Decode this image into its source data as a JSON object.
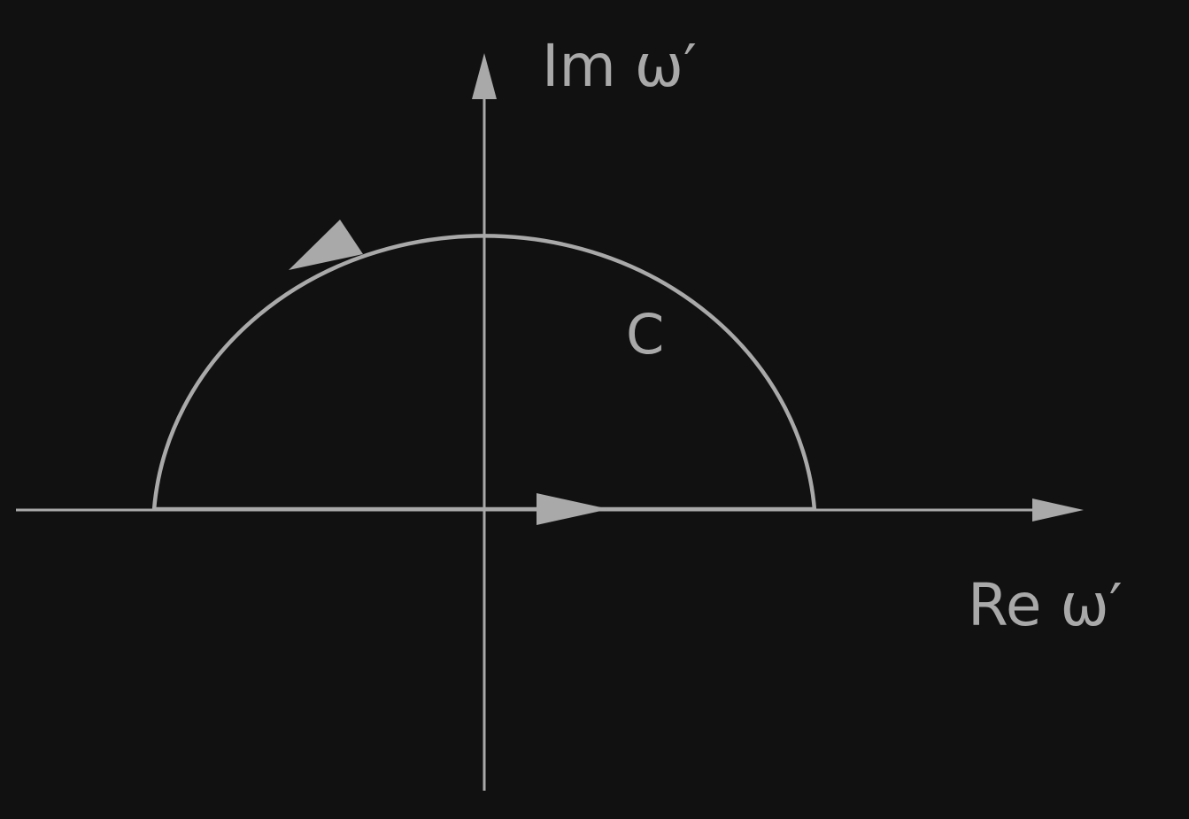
{
  "diagram": {
    "labels": {
      "imaginary_axis": "Im ω′",
      "real_axis": "Re ω′",
      "contour": "C"
    },
    "colors": {
      "background": "#111111",
      "stroke": "#a9a9a9"
    }
  }
}
